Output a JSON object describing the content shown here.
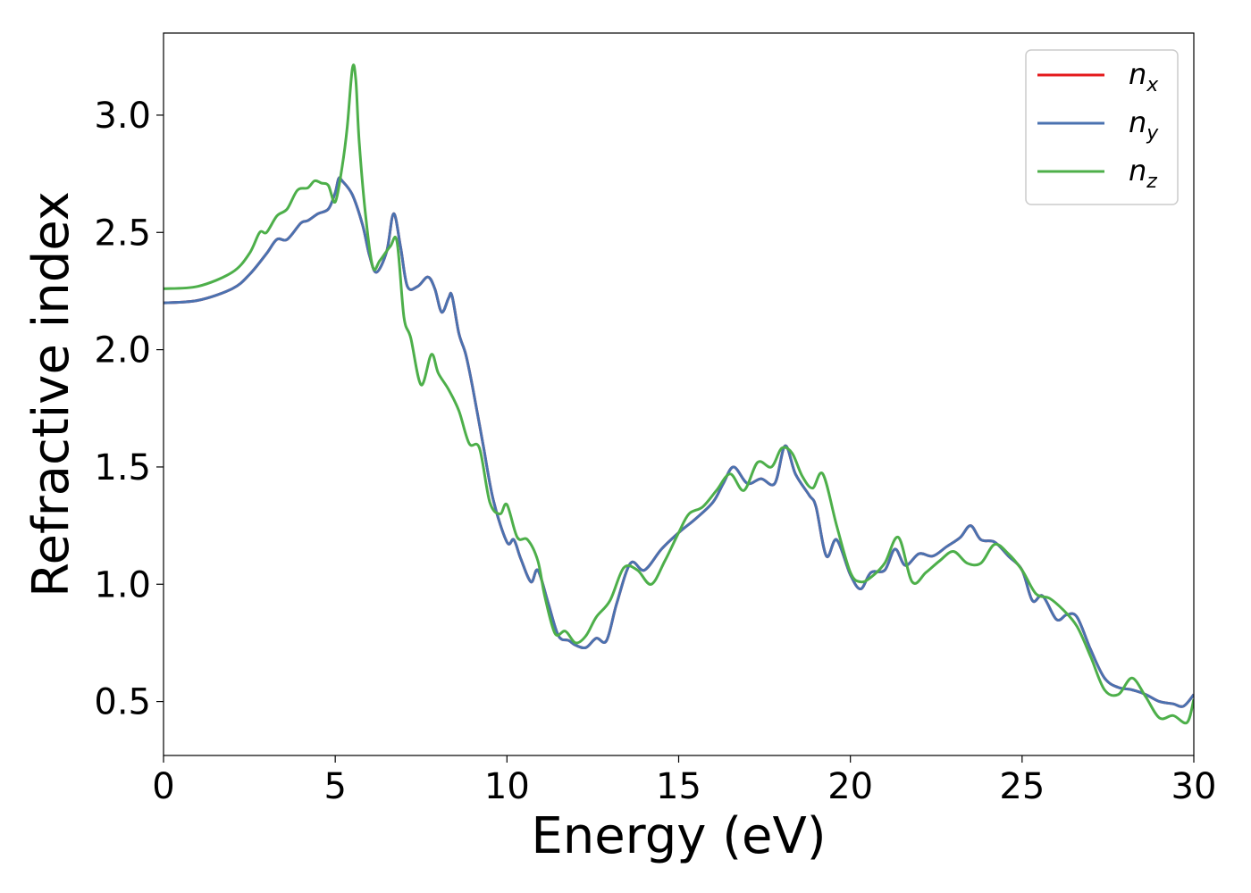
{
  "chart_data": {
    "type": "line",
    "title": "",
    "xlabel": "Energy (eV)",
    "ylabel": "Refractive index",
    "xlim": [
      0,
      30
    ],
    "ylim": [
      0.27,
      3.35
    ],
    "xticks": [
      0,
      5,
      10,
      15,
      20,
      25,
      30
    ],
    "xtick_labels": [
      "0",
      "5",
      "10",
      "15",
      "20",
      "25",
      "30"
    ],
    "yticks": [
      0.5,
      1.0,
      1.5,
      2.0,
      2.5,
      3.0
    ],
    "ytick_labels": [
      "0.5",
      "1.0",
      "1.5",
      "2.0",
      "2.5",
      "3.0"
    ],
    "grid": false,
    "legend": {
      "placement": "top-right",
      "entries": [
        {
          "base": "n",
          "sub": "x",
          "color": "#e41a1c"
        },
        {
          "base": "n",
          "sub": "y",
          "color": "#4a72b0"
        },
        {
          "base": "n",
          "sub": "z",
          "color": "#4daf4a"
        }
      ]
    },
    "series": [
      {
        "color": "#e41a1c",
        "x": [
          0,
          1,
          2,
          2.5,
          3,
          3.3,
          3.6,
          4.0,
          4.2,
          4.5,
          4.8,
          5.0,
          5.1,
          5.2,
          5.5,
          5.8,
          6.0,
          6.2,
          6.5,
          6.7,
          6.9,
          7.1,
          7.4,
          7.7,
          7.9,
          8.1,
          8.3,
          8.4,
          8.6,
          8.8,
          9.0,
          9.3,
          9.6,
          10.0,
          10.2,
          10.4,
          10.7,
          10.9,
          11.2,
          11.5,
          11.8,
          12.0,
          12.3,
          12.6,
          12.9,
          13.2,
          13.6,
          14.0,
          14.5,
          15.0,
          15.5,
          16.0,
          16.3,
          16.6,
          17.0,
          17.4,
          17.8,
          18.1,
          18.4,
          18.8,
          19.0,
          19.3,
          19.6,
          20.0,
          20.3,
          20.6,
          21.0,
          21.3,
          21.6,
          22.0,
          22.4,
          22.8,
          23.2,
          23.5,
          23.8,
          24.2,
          24.6,
          25.0,
          25.3,
          25.6,
          26.0,
          26.3,
          26.6,
          27.0,
          27.4,
          27.8,
          28.2,
          28.6,
          29.0,
          29.4,
          29.7,
          30.0
        ],
        "y": [
          2.2,
          2.21,
          2.26,
          2.32,
          2.41,
          2.47,
          2.47,
          2.54,
          2.55,
          2.58,
          2.6,
          2.67,
          2.73,
          2.72,
          2.66,
          2.53,
          2.4,
          2.33,
          2.42,
          2.58,
          2.44,
          2.27,
          2.27,
          2.31,
          2.26,
          2.16,
          2.22,
          2.23,
          2.07,
          1.98,
          1.84,
          1.6,
          1.36,
          1.18,
          1.19,
          1.11,
          1.01,
          1.06,
          0.92,
          0.78,
          0.76,
          0.74,
          0.73,
          0.77,
          0.76,
          0.92,
          1.09,
          1.06,
          1.15,
          1.22,
          1.28,
          1.35,
          1.43,
          1.5,
          1.43,
          1.45,
          1.43,
          1.59,
          1.47,
          1.38,
          1.33,
          1.12,
          1.19,
          1.04,
          0.98,
          1.05,
          1.06,
          1.15,
          1.08,
          1.13,
          1.12,
          1.16,
          1.2,
          1.25,
          1.19,
          1.18,
          1.12,
          1.06,
          0.93,
          0.95,
          0.85,
          0.87,
          0.86,
          0.72,
          0.6,
          0.56,
          0.55,
          0.53,
          0.5,
          0.49,
          0.48,
          0.53
        ]
      },
      {
        "color": "#4a72b0",
        "x": [
          0,
          1,
          2,
          2.5,
          3,
          3.3,
          3.6,
          4.0,
          4.2,
          4.5,
          4.8,
          5.0,
          5.1,
          5.2,
          5.5,
          5.8,
          6.0,
          6.2,
          6.5,
          6.7,
          6.9,
          7.1,
          7.4,
          7.7,
          7.9,
          8.1,
          8.3,
          8.4,
          8.6,
          8.8,
          9.0,
          9.3,
          9.6,
          10.0,
          10.2,
          10.4,
          10.7,
          10.9,
          11.2,
          11.5,
          11.8,
          12.0,
          12.3,
          12.6,
          12.9,
          13.2,
          13.6,
          14.0,
          14.5,
          15.0,
          15.5,
          16.0,
          16.3,
          16.6,
          17.0,
          17.4,
          17.8,
          18.1,
          18.4,
          18.8,
          19.0,
          19.3,
          19.6,
          20.0,
          20.3,
          20.6,
          21.0,
          21.3,
          21.6,
          22.0,
          22.4,
          22.8,
          23.2,
          23.5,
          23.8,
          24.2,
          24.6,
          25.0,
          25.3,
          25.6,
          26.0,
          26.3,
          26.6,
          27.0,
          27.4,
          27.8,
          28.2,
          28.6,
          29.0,
          29.4,
          29.7,
          30.0
        ],
        "y": [
          2.2,
          2.21,
          2.26,
          2.32,
          2.41,
          2.47,
          2.47,
          2.54,
          2.55,
          2.58,
          2.6,
          2.67,
          2.73,
          2.72,
          2.66,
          2.53,
          2.4,
          2.33,
          2.42,
          2.58,
          2.44,
          2.27,
          2.27,
          2.31,
          2.26,
          2.16,
          2.22,
          2.23,
          2.07,
          1.98,
          1.84,
          1.6,
          1.36,
          1.18,
          1.19,
          1.11,
          1.01,
          1.06,
          0.92,
          0.78,
          0.76,
          0.74,
          0.73,
          0.77,
          0.76,
          0.92,
          1.09,
          1.06,
          1.15,
          1.22,
          1.28,
          1.35,
          1.43,
          1.5,
          1.43,
          1.45,
          1.43,
          1.59,
          1.47,
          1.38,
          1.33,
          1.12,
          1.19,
          1.04,
          0.98,
          1.05,
          1.06,
          1.15,
          1.08,
          1.13,
          1.12,
          1.16,
          1.2,
          1.25,
          1.19,
          1.18,
          1.12,
          1.06,
          0.93,
          0.95,
          0.85,
          0.87,
          0.86,
          0.72,
          0.6,
          0.56,
          0.55,
          0.53,
          0.5,
          0.49,
          0.48,
          0.53
        ]
      },
      {
        "color": "#4daf4a",
        "x": [
          0,
          1,
          2,
          2.5,
          2.8,
          3.0,
          3.3,
          3.6,
          3.9,
          4.2,
          4.4,
          4.6,
          4.8,
          5.0,
          5.2,
          5.35,
          5.5,
          5.6,
          5.7,
          5.9,
          6.1,
          6.3,
          6.6,
          6.8,
          7.0,
          7.2,
          7.5,
          7.8,
          8.0,
          8.3,
          8.6,
          8.9,
          9.2,
          9.5,
          9.8,
          10.0,
          10.3,
          10.6,
          10.9,
          11.1,
          11.4,
          11.7,
          12.0,
          12.3,
          12.6,
          13.0,
          13.4,
          13.8,
          14.2,
          14.6,
          15.0,
          15.3,
          15.7,
          16.1,
          16.5,
          16.9,
          17.3,
          17.7,
          18.0,
          18.3,
          18.6,
          18.9,
          19.2,
          19.6,
          20.0,
          20.3,
          20.6,
          21.0,
          21.4,
          21.8,
          22.2,
          22.6,
          23.0,
          23.4,
          23.8,
          24.2,
          24.6,
          25.0,
          25.4,
          25.8,
          26.2,
          26.6,
          27.0,
          27.4,
          27.8,
          28.2,
          28.6,
          29.0,
          29.4,
          29.8,
          30.0
        ],
        "y": [
          2.26,
          2.27,
          2.33,
          2.41,
          2.5,
          2.5,
          2.57,
          2.6,
          2.68,
          2.69,
          2.72,
          2.71,
          2.7,
          2.63,
          2.78,
          2.95,
          3.2,
          3.15,
          2.88,
          2.55,
          2.35,
          2.38,
          2.44,
          2.46,
          2.14,
          2.05,
          1.85,
          1.98,
          1.9,
          1.83,
          1.74,
          1.6,
          1.58,
          1.35,
          1.3,
          1.34,
          1.2,
          1.19,
          1.1,
          0.95,
          0.79,
          0.8,
          0.75,
          0.78,
          0.86,
          0.93,
          1.07,
          1.06,
          1.0,
          1.1,
          1.22,
          1.3,
          1.33,
          1.4,
          1.47,
          1.4,
          1.52,
          1.5,
          1.58,
          1.56,
          1.46,
          1.41,
          1.47,
          1.25,
          1.05,
          1.01,
          1.03,
          1.09,
          1.2,
          1.01,
          1.05,
          1.1,
          1.14,
          1.09,
          1.09,
          1.17,
          1.13,
          1.06,
          0.96,
          0.94,
          0.89,
          0.82,
          0.69,
          0.55,
          0.53,
          0.6,
          0.52,
          0.43,
          0.44,
          0.41,
          0.51
        ]
      }
    ]
  }
}
